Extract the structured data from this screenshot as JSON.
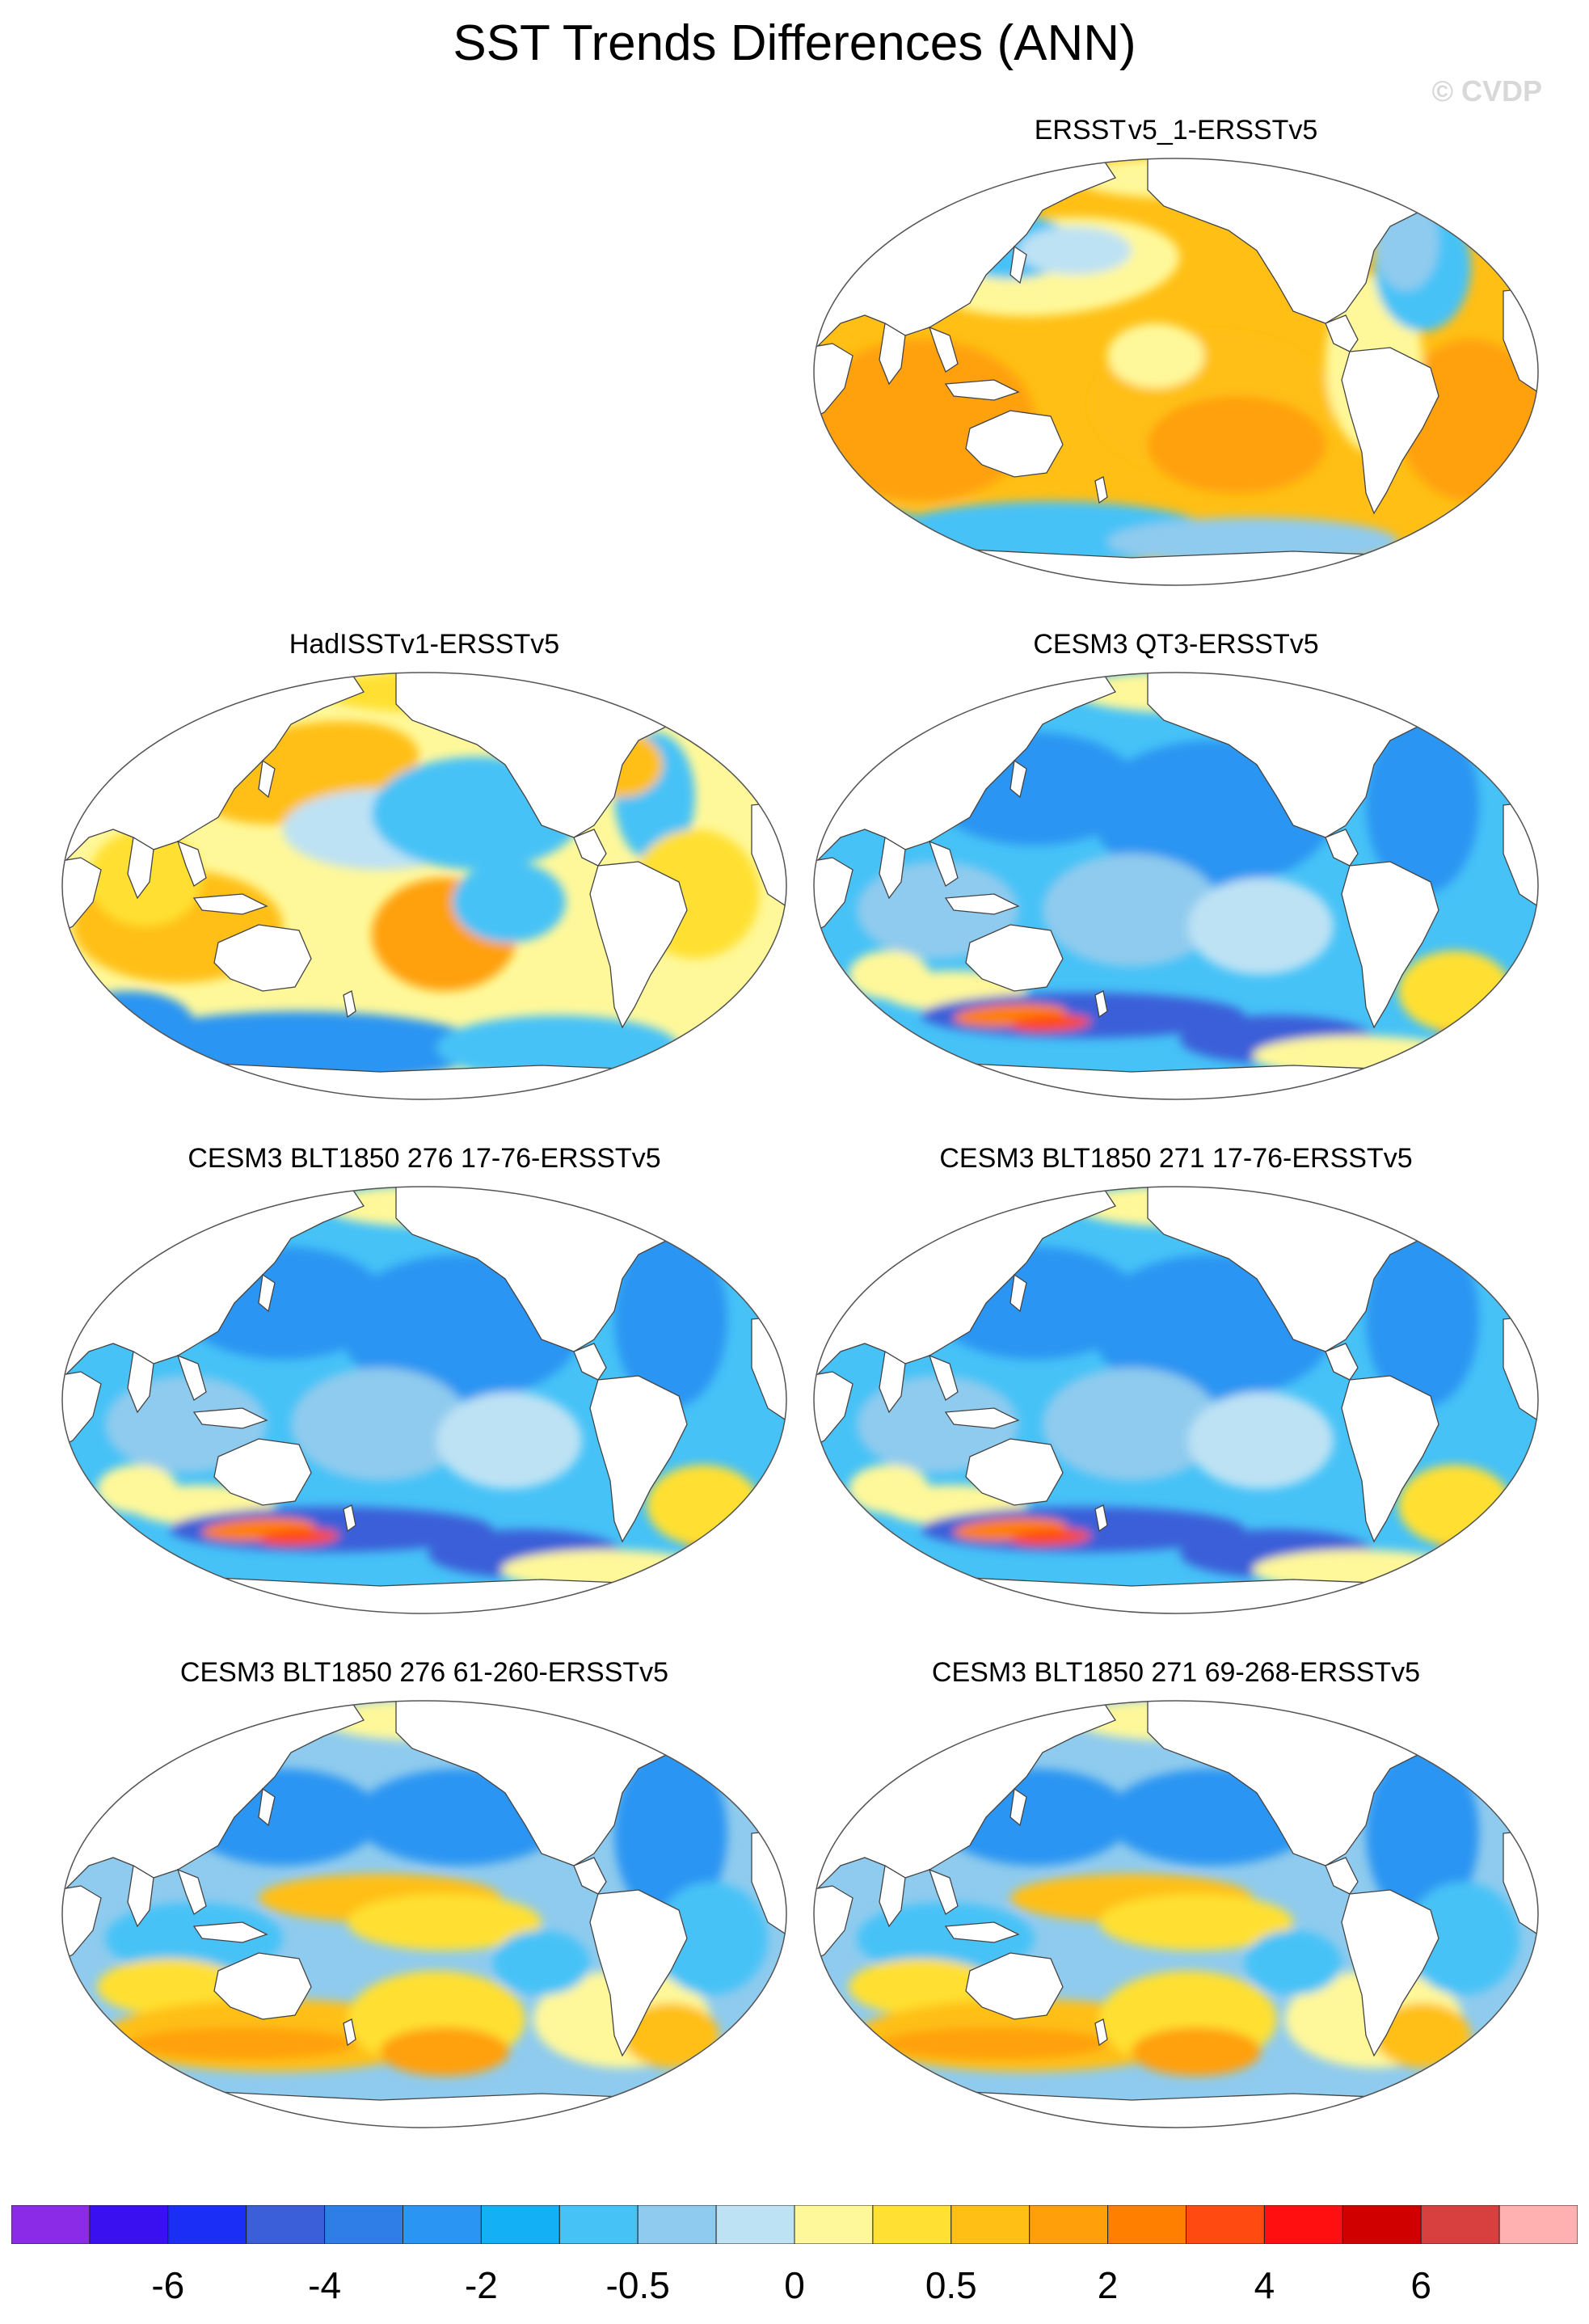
{
  "title": "SST Trends Differences (ANN)",
  "credit": "© CVDP",
  "panels": [
    {
      "title": "ERSST v5_1-ERSSTv5",
      "pattern": "warm-broad"
    },
    {
      "title": "HadISSTv1-ERSSTv5",
      "pattern": "mixed-warm"
    },
    {
      "title": "CESM3 QT3-ERSSTv5",
      "pattern": "cool-broad"
    },
    {
      "title": "CESM3 BLT1850 276 17-76-ERSSTv5",
      "pattern": "cool-broad"
    },
    {
      "title": "CESM3 BLT1850 271 17-76-ERSSTv5",
      "pattern": "cool-broad"
    },
    {
      "title": "CESM3 BLT1850 276 61-260-ERSSTv5",
      "pattern": "mixed-south-warm"
    },
    {
      "title": "CESM3 BLT1850 271 69-268-ERSSTv5",
      "pattern": "mixed-south-warm"
    }
  ],
  "colorbar": {
    "colors": [
      "#8b2be8",
      "#3b10f0",
      "#1a2ef5",
      "#3b5fd8",
      "#2f7ee8",
      "#2a95f2",
      "#14b0f5",
      "#46c2f7",
      "#8fcbee",
      "#bde2f4",
      "#fff89a",
      "#ffe033",
      "#ffbf14",
      "#ffa00a",
      "#ff7f00",
      "#ff4a12",
      "#ff0f0f",
      "#d00000",
      "#d84040",
      "#ffb0b0"
    ],
    "labels": [
      "-6",
      "-4",
      "-2",
      "-0.5",
      "0",
      "0.5",
      "2",
      "4",
      "6"
    ]
  }
}
